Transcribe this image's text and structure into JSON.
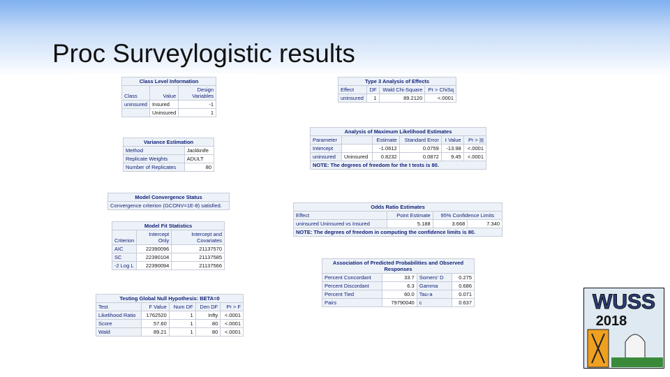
{
  "title": "Proc Surveylogistic results",
  "logo": {
    "text": "WUSS",
    "year": "2018"
  },
  "left_panel": {
    "tables": [
      {
        "title": "Class Level Information",
        "columns": [
          "Class",
          "Value",
          "Design Variables"
        ],
        "rows": [
          [
            "uninsured",
            "Insured",
            "-1"
          ],
          [
            null,
            "Uninsured",
            "1"
          ]
        ]
      },
      {
        "title": "Variance Estimation",
        "rows": [
          [
            "Method",
            "Jackknife"
          ],
          [
            "Replicate Weights",
            "ADULT"
          ],
          [
            "Number of Replicates",
            "80"
          ]
        ]
      },
      {
        "title": "Model Convergence Status",
        "rows": [
          [
            "Convergence criterion (GCONV=1E-8) satisfied."
          ]
        ]
      },
      {
        "title": "Model Fit Statistics",
        "columns": [
          "Criterion",
          "Intercept Only",
          "Intercept and Covariates"
        ],
        "rows": [
          [
            "AIC",
            "22390096",
            "21137570"
          ],
          [
            "SC",
            "22390104",
            "21137585"
          ],
          [
            "-2 Log L",
            "22390094",
            "21137566"
          ]
        ]
      },
      {
        "title": "Testing Global Null Hypothesis: BETA=0",
        "columns": [
          "Test",
          "F Value",
          "Num DF",
          "Den DF",
          "Pr > F"
        ],
        "rows": [
          [
            "Likelihood Ratio",
            "1762520",
            "1",
            "Infty",
            "<.0001"
          ],
          [
            "Score",
            "57.60",
            "1",
            "80",
            "<.0001"
          ],
          [
            "Wald",
            "89.21",
            "1",
            "80",
            "<.0001"
          ]
        ]
      }
    ]
  },
  "right_panel": {
    "tables": [
      {
        "title": "Type 3 Analysis of Effects",
        "columns": [
          "Effect",
          "DF",
          "Wald Chi-Square",
          "Pr > ChiSq"
        ],
        "rows": [
          [
            "uninsured",
            "1",
            "89.2120",
            "<.0001"
          ]
        ]
      },
      {
        "title": "Analysis of Maximum Likelihood Estimates",
        "columns": [
          "Parameter",
          null,
          "Estimate",
          "Standard Error",
          "t Value",
          "Pr > |t|"
        ],
        "rows": [
          [
            "Intercept",
            null,
            "-1.0612",
            "0.0759",
            "-13.98",
            "<.0001"
          ],
          [
            "uninsured",
            "Uninsured",
            "0.8232",
            "0.0872",
            "9.45",
            "<.0001"
          ]
        ],
        "note": "NOTE: The degrees of freedom for the t tests is 80."
      },
      {
        "title": "Odds Ratio Estimates",
        "columns": [
          "Effect",
          "Point Estimate",
          "95% Confidence Limits"
        ],
        "rows": [
          [
            "uninsured Uninsured vs Insured",
            "5.188",
            "3.668",
            "7.340"
          ]
        ],
        "note": "NOTE: The degrees of freedom in computing the confidence limits is 80."
      },
      {
        "title": "Association of Predicted Probabilities and Observed Responses",
        "rows": [
          [
            "Percent Concordant",
            "33.7",
            "Somers' D",
            "0.275"
          ],
          [
            "Percent Discordant",
            "6.3",
            "Gamma",
            "0.686"
          ],
          [
            "Percent Tied",
            "60.0",
            "Tau-a",
            "0.071"
          ],
          [
            "Pairs",
            "79790040",
            "c",
            "0.637"
          ]
        ]
      }
    ]
  }
}
